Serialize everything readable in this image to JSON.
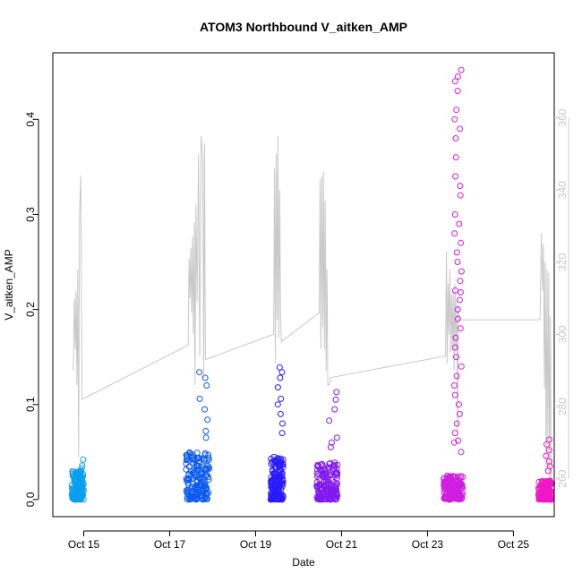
{
  "chart_data": {
    "type": "scatter",
    "title": "ATOM3 Northbound V_aitken_AMP",
    "xlabel": "Date",
    "ylabel": "V_aitken_AMP",
    "x_ticks": [
      "Oct 15",
      "Oct 17",
      "Oct 19",
      "Oct 21",
      "Oct 23",
      "Oct 25"
    ],
    "x_range_days": [
      14.28,
      25.95
    ],
    "ylim": [
      -0.018,
      0.47
    ],
    "y_ticks": [
      0.0,
      0.1,
      0.2,
      0.3,
      0.4
    ],
    "y_tick_labels": [
      "0.0",
      "0.1",
      "0.2",
      "0.3",
      "0.4"
    ],
    "y2lim": [
      249.5,
      378
    ],
    "y2_ticks": [
      260,
      280,
      300,
      320,
      340,
      360
    ],
    "y2_tick_labels": [
      "260",
      "280",
      "300",
      "320",
      "340",
      "360"
    ],
    "grid": false,
    "series": [
      {
        "color": "#0aa0f0",
        "x_range": [
          14.72,
          15.0
        ],
        "y_base": [
          0.0,
          0.03
        ],
        "peaks": [
          0.042,
          0.036,
          0.033
        ]
      },
      {
        "color": "#0a5af0",
        "x_range": [
          17.38,
          17.92
        ],
        "y_base": [
          0.0,
          0.05
        ],
        "peaks": [
          0.134,
          0.128,
          0.12,
          0.106,
          0.095,
          0.084,
          0.072,
          0.065
        ]
      },
      {
        "color": "#2a1aff",
        "x_range": [
          19.35,
          19.65
        ],
        "y_base": [
          0.0,
          0.045
        ],
        "peaks": [
          0.139,
          0.134,
          0.128,
          0.118,
          0.106,
          0.1,
          0.09,
          0.08,
          0.07
        ]
      },
      {
        "color": "#8018f0",
        "x_range": [
          20.42,
          20.92
        ],
        "y_base": [
          0.0,
          0.04
        ],
        "peaks": [
          0.113,
          0.105,
          0.095,
          0.083,
          0.065,
          0.06,
          0.055
        ]
      },
      {
        "color": "#d01ee0",
        "x_range": [
          23.38,
          23.82
        ],
        "y_base": [
          0.0,
          0.025
        ],
        "peaks": [
          0.452,
          0.445,
          0.44,
          0.43,
          0.41,
          0.4,
          0.39,
          0.38,
          0.36,
          0.34,
          0.33,
          0.32,
          0.3,
          0.29,
          0.28,
          0.27,
          0.26,
          0.25,
          0.24,
          0.23,
          0.22,
          0.21,
          0.2,
          0.19,
          0.18,
          0.17,
          0.16,
          0.15,
          0.14,
          0.13,
          0.12,
          0.11,
          0.1,
          0.09,
          0.08,
          0.07,
          0.06,
          0.05,
          0.218,
          0.062
        ]
      },
      {
        "color": "#f018c8",
        "x_range": [
          25.58,
          25.9
        ],
        "y_base": [
          0.0,
          0.02
        ],
        "peaks": [
          0.063,
          0.058,
          0.052,
          0.046,
          0.04,
          0.035,
          0.03
        ]
      }
    ],
    "line_series": {
      "color": "#c8c8c8",
      "axis": "right",
      "points": [
        [
          14.76,
          290
        ],
        [
          14.78,
          310
        ],
        [
          14.8,
          296
        ],
        [
          14.82,
          312
        ],
        [
          14.84,
          286
        ],
        [
          14.86,
          318
        ],
        [
          14.88,
          266
        ],
        [
          14.9,
          333
        ],
        [
          14.93,
          344
        ],
        [
          14.96,
          282
        ],
        [
          17.43,
          297
        ],
        [
          17.45,
          321
        ],
        [
          17.47,
          310
        ],
        [
          17.49,
          324
        ],
        [
          17.51,
          306
        ],
        [
          17.53,
          327
        ],
        [
          17.55,
          300
        ],
        [
          17.57,
          331
        ],
        [
          17.59,
          286
        ],
        [
          17.61,
          336
        ],
        [
          17.64,
          309
        ],
        [
          17.67,
          350
        ],
        [
          17.7,
          294
        ],
        [
          17.73,
          355
        ],
        [
          17.77,
          349
        ],
        [
          17.79,
          288
        ],
        [
          17.81,
          353
        ],
        [
          17.83,
          293
        ],
        [
          19.42,
          300
        ],
        [
          19.44,
          346
        ],
        [
          19.46,
          292
        ],
        [
          19.48,
          350
        ],
        [
          19.5,
          304
        ],
        [
          19.52,
          355
        ],
        [
          19.54,
          299
        ],
        [
          19.56,
          340
        ],
        [
          19.58,
          305
        ],
        [
          19.6,
          298
        ],
        [
          20.48,
          306
        ],
        [
          20.5,
          343
        ],
        [
          20.52,
          296
        ],
        [
          20.54,
          344
        ],
        [
          20.56,
          302
        ],
        [
          20.58,
          345
        ],
        [
          20.6,
          296
        ],
        [
          20.62,
          337
        ],
        [
          20.64,
          290
        ],
        [
          20.66,
          318
        ],
        [
          20.68,
          286
        ],
        [
          20.72,
          286
        ],
        [
          20.74,
          288
        ],
        [
          23.42,
          294
        ],
        [
          23.44,
          323
        ],
        [
          23.46,
          292
        ],
        [
          23.48,
          314
        ],
        [
          23.5,
          300
        ],
        [
          23.52,
          318
        ],
        [
          23.54,
          295
        ],
        [
          23.56,
          311
        ],
        [
          23.58,
          297
        ],
        [
          23.6,
          312
        ],
        [
          23.62,
          290
        ],
        [
          23.64,
          314
        ],
        [
          23.66,
          296
        ],
        [
          23.68,
          309
        ],
        [
          23.7,
          271
        ],
        [
          23.72,
          308
        ],
        [
          23.74,
          304
        ],
        [
          25.62,
          304
        ],
        [
          25.65,
          328
        ],
        [
          25.68,
          312
        ],
        [
          25.7,
          325
        ],
        [
          25.72,
          285
        ],
        [
          25.74,
          320
        ],
        [
          25.76,
          262
        ],
        [
          25.78,
          318
        ],
        [
          25.8,
          271
        ],
        [
          25.82,
          317
        ],
        [
          25.84,
          260
        ],
        [
          25.86,
          305
        ],
        [
          25.88,
          256
        ]
      ]
    }
  }
}
